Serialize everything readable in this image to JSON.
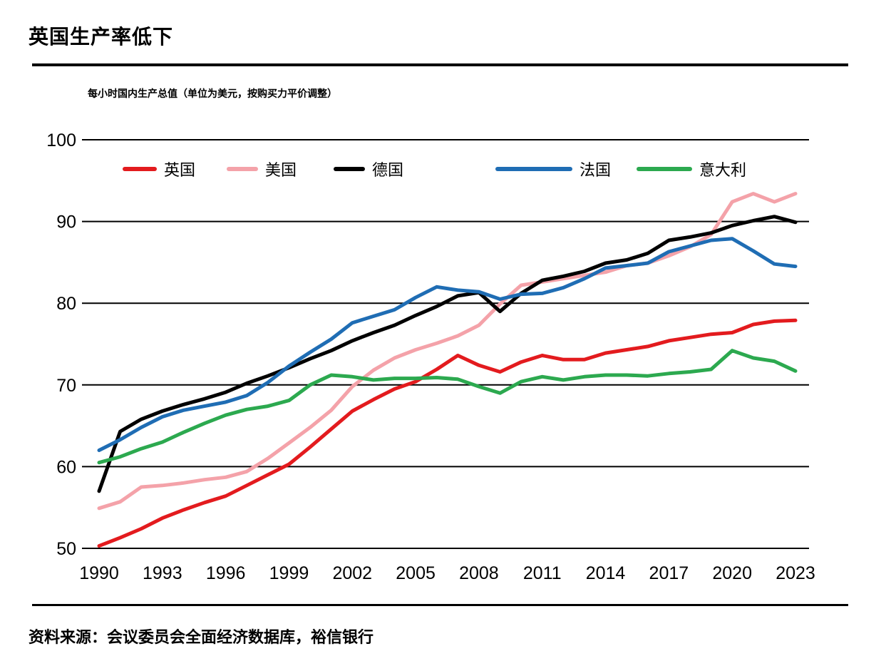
{
  "header": {
    "rule_color": "#000000"
  },
  "footer": {
    "source": "资料来源：会议委员会全面经济数据库，裕信银行"
  },
  "chart_data": {
    "type": "line",
    "title": "英国生产率低下",
    "subtitle": "每小时国内生产总值（单位为美元，按购买力平价调整）",
    "source": "资料来源：会议委员会全面经济数据库，裕信银行",
    "x": [
      1990,
      1991,
      1992,
      1993,
      1994,
      1995,
      1996,
      1997,
      1998,
      1999,
      2000,
      2001,
      2002,
      2003,
      2004,
      2005,
      2006,
      2007,
      2008,
      2009,
      2010,
      2011,
      2012,
      2013,
      2014,
      2015,
      2016,
      2017,
      2018,
      2019,
      2020,
      2021,
      2022,
      2023
    ],
    "x_tick_labels": [
      "1990",
      "1993",
      "1996",
      "1999",
      "2002",
      "2005",
      "2008",
      "2011",
      "2014",
      "2017",
      "2020",
      "2023"
    ],
    "y_ticks": [
      50,
      60,
      70,
      80,
      90,
      100
    ],
    "ylim": [
      50,
      100
    ],
    "xlabel": "",
    "ylabel": "",
    "grid": "horizontal",
    "legend_position": "top",
    "series": [
      {
        "name": "英国",
        "color": "#e31b1e",
        "values": [
          50.3,
          51.3,
          52.4,
          53.7,
          54.7,
          55.6,
          56.4,
          57.7,
          59.0,
          60.3,
          62.4,
          64.6,
          66.8,
          68.2,
          69.5,
          70.4,
          71.9,
          73.6,
          72.4,
          71.6,
          72.8,
          73.6,
          73.1,
          73.1,
          73.9,
          74.3,
          74.7,
          75.4,
          75.8,
          76.2,
          76.4,
          77.4,
          77.8,
          77.9
        ]
      },
      {
        "name": "美国",
        "color": "#f4a2a9",
        "values": [
          54.9,
          55.7,
          57.5,
          57.7,
          58.0,
          58.4,
          58.7,
          59.4,
          61.0,
          62.9,
          64.8,
          66.9,
          69.8,
          71.8,
          73.3,
          74.3,
          75.1,
          76.0,
          77.3,
          79.9,
          82.2,
          82.6,
          83.0,
          83.4,
          83.8,
          84.6,
          84.9,
          85.8,
          86.9,
          88.4,
          92.4,
          93.4,
          92.4,
          93.4
        ]
      },
      {
        "name": "德国",
        "color": "#000000",
        "values": [
          57.0,
          64.3,
          65.8,
          66.8,
          67.6,
          68.3,
          69.1,
          70.2,
          71.1,
          72.1,
          73.2,
          74.2,
          75.4,
          76.4,
          77.3,
          78.5,
          79.6,
          80.9,
          81.3,
          79.0,
          81.2,
          82.8,
          83.3,
          83.9,
          84.9,
          85.3,
          86.1,
          87.7,
          88.1,
          88.6,
          89.5,
          90.1,
          90.6,
          89.9
        ]
      },
      {
        "name": "法国",
        "color": "#1f6db4",
        "values": [
          62.0,
          63.3,
          64.8,
          66.1,
          66.9,
          67.4,
          67.9,
          68.7,
          70.3,
          72.3,
          74.0,
          75.6,
          77.6,
          78.4,
          79.2,
          80.7,
          82.0,
          81.6,
          81.4,
          80.5,
          81.1,
          81.2,
          81.9,
          83.0,
          84.3,
          84.6,
          84.9,
          86.3,
          87.0,
          87.7,
          87.9,
          86.4,
          84.8,
          84.5
        ]
      },
      {
        "name": "意大利",
        "color": "#2ca94f",
        "values": [
          60.5,
          61.2,
          62.2,
          63.0,
          64.2,
          65.3,
          66.3,
          67.0,
          67.4,
          68.1,
          70.0,
          71.2,
          71.0,
          70.6,
          70.8,
          70.8,
          70.9,
          70.7,
          69.8,
          69.0,
          70.4,
          71.0,
          70.6,
          71.0,
          71.2,
          71.2,
          71.1,
          71.4,
          71.6,
          71.9,
          74.2,
          73.3,
          72.9,
          71.7
        ]
      }
    ]
  }
}
